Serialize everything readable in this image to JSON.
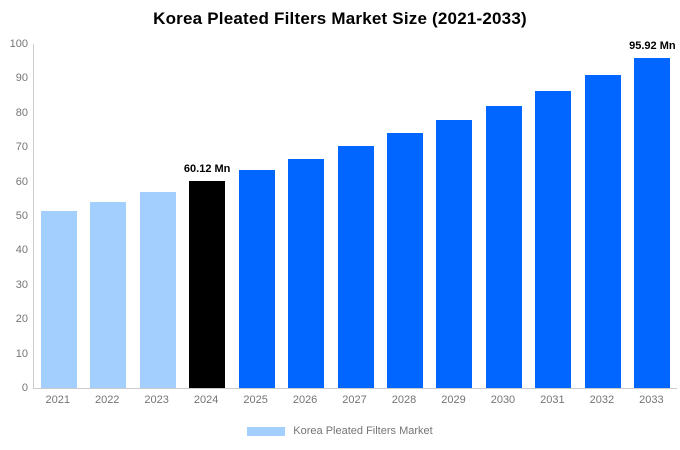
{
  "title": "Korea Pleated Filters Market Size (2021-2033)",
  "chart_data": {
    "type": "bar",
    "title": "Korea Pleated Filters Market Size (2021-2033)",
    "categories": [
      "2021",
      "2022",
      "2023",
      "2024",
      "2025",
      "2026",
      "2027",
      "2028",
      "2029",
      "2030",
      "2031",
      "2032",
      "2033"
    ],
    "values": [
      51.45,
      54.19,
      57.08,
      60.12,
      63.32,
      66.69,
      70.24,
      73.99,
      77.93,
      82.08,
      86.46,
      91.07,
      95.92
    ],
    "series_color_keys": [
      "historical",
      "historical",
      "historical",
      "current",
      "forecast",
      "forecast",
      "forecast",
      "forecast",
      "forecast",
      "forecast",
      "forecast",
      "forecast",
      "forecast"
    ],
    "colors": {
      "historical": "#a3cfff",
      "current": "#000000",
      "forecast": "#0066ff"
    },
    "annotations": [
      {
        "category": "2024",
        "text": "60.12 Mn"
      },
      {
        "category": "2033",
        "text": "95.92 Mn"
      }
    ],
    "xlabel": "",
    "ylabel": "",
    "ylim": [
      0,
      100
    ],
    "yticks": [
      0,
      10,
      20,
      30,
      40,
      50,
      60,
      70,
      80,
      90,
      100
    ],
    "grid": false,
    "legend": {
      "label": "Korea Pleated Filters Market",
      "swatch_color": "#a3cfff",
      "position": "bottom"
    },
    "axis_color": "#cccccc",
    "tick_text_color": "#757575"
  }
}
